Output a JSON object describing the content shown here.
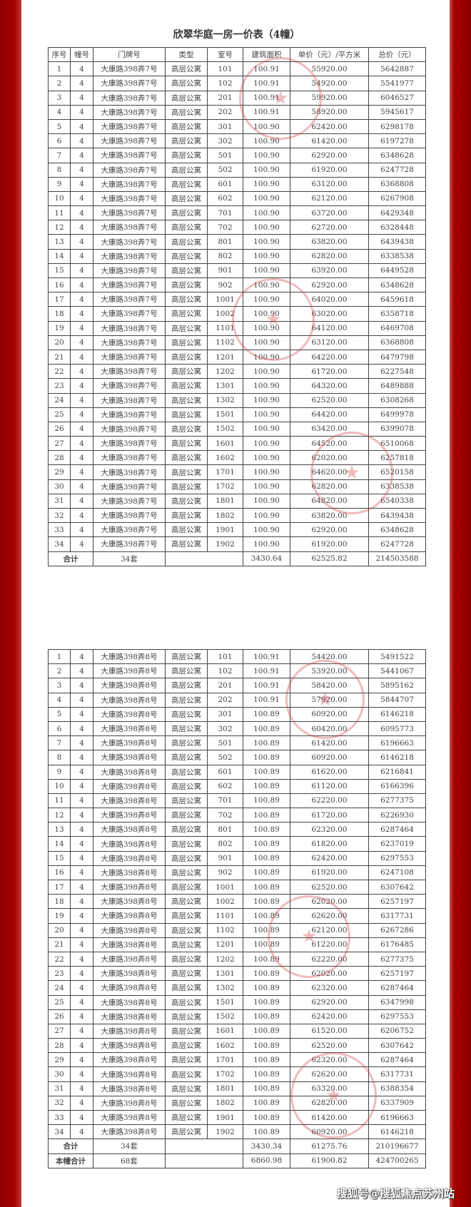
{
  "title": "欣翠华庭一房一价表（4幢）",
  "headers": [
    "序号",
    "幢号",
    "门牌号",
    "类型",
    "室号",
    "建筑面积",
    "单价（元）/平方米",
    "总价（元）"
  ],
  "table1": {
    "address": "大康路398弄7号",
    "rows": [
      [
        "1",
        "4",
        "大康路398弄7号",
        "高层公寓",
        "101",
        "100.91",
        "55920.00",
        "5642887"
      ],
      [
        "2",
        "4",
        "大康路398弄7号",
        "高层公寓",
        "102",
        "100.91",
        "54920.00",
        "5541977"
      ],
      [
        "3",
        "4",
        "大康路398弄7号",
        "高层公寓",
        "201",
        "100.91",
        "59920.00",
        "6046527"
      ],
      [
        "4",
        "4",
        "大康路398弄7号",
        "高层公寓",
        "202",
        "100.91",
        "58920.00",
        "5945617"
      ],
      [
        "5",
        "4",
        "大康路398弄7号",
        "高层公寓",
        "301",
        "100.90",
        "62420.00",
        "6298178"
      ],
      [
        "6",
        "4",
        "大康路398弄7号",
        "高层公寓",
        "302",
        "100.90",
        "61420.00",
        "6197278"
      ],
      [
        "7",
        "4",
        "大康路398弄7号",
        "高层公寓",
        "501",
        "100.90",
        "62920.00",
        "6348628"
      ],
      [
        "8",
        "4",
        "大康路398弄7号",
        "高层公寓",
        "502",
        "100.90",
        "61920.00",
        "6247728"
      ],
      [
        "9",
        "4",
        "大康路398弄7号",
        "高层公寓",
        "601",
        "100.90",
        "63120.00",
        "6368808"
      ],
      [
        "10",
        "4",
        "大康路398弄7号",
        "高层公寓",
        "602",
        "100.90",
        "62120.00",
        "6267908"
      ],
      [
        "11",
        "4",
        "大康路398弄7号",
        "高层公寓",
        "701",
        "100.90",
        "63720.00",
        "6429348"
      ],
      [
        "12",
        "4",
        "大康路398弄7号",
        "高层公寓",
        "702",
        "100.90",
        "62720.00",
        "6328448"
      ],
      [
        "13",
        "4",
        "大康路398弄7号",
        "高层公寓",
        "801",
        "100.90",
        "63820.00",
        "6439438"
      ],
      [
        "14",
        "4",
        "大康路398弄7号",
        "高层公寓",
        "802",
        "100.90",
        "62820.00",
        "6338538"
      ],
      [
        "15",
        "4",
        "大康路398弄7号",
        "高层公寓",
        "901",
        "100.90",
        "63920.00",
        "6449528"
      ],
      [
        "16",
        "4",
        "大康路398弄7号",
        "高层公寓",
        "902",
        "100.90",
        "62920.00",
        "6348628"
      ],
      [
        "17",
        "4",
        "大康路398弄7号",
        "高层公寓",
        "1001",
        "100.90",
        "64020.00",
        "6459618"
      ],
      [
        "18",
        "4",
        "大康路398弄7号",
        "高层公寓",
        "1002",
        "100.90",
        "63020.00",
        "6358718"
      ],
      [
        "19",
        "4",
        "大康路398弄7号",
        "高层公寓",
        "1101",
        "100.90",
        "64120.00",
        "6469708"
      ],
      [
        "20",
        "4",
        "大康路398弄7号",
        "高层公寓",
        "1102",
        "100.90",
        "63120.00",
        "6368808"
      ],
      [
        "21",
        "4",
        "大康路398弄7号",
        "高层公寓",
        "1201",
        "100.90",
        "64220.00",
        "6479798"
      ],
      [
        "22",
        "4",
        "大康路398弄7号",
        "高层公寓",
        "1202",
        "100.90",
        "61720.00",
        "6227548"
      ],
      [
        "23",
        "4",
        "大康路398弄7号",
        "高层公寓",
        "1301",
        "100.90",
        "64320.00",
        "6489888"
      ],
      [
        "24",
        "4",
        "大康路398弄7号",
        "高层公寓",
        "1302",
        "100.90",
        "62520.00",
        "6308268"
      ],
      [
        "25",
        "4",
        "大康路398弄7号",
        "高层公寓",
        "1501",
        "100.90",
        "64420.00",
        "6499978"
      ],
      [
        "26",
        "4",
        "大康路398弄7号",
        "高层公寓",
        "1502",
        "100.90",
        "63420.00",
        "6399078"
      ],
      [
        "27",
        "4",
        "大康路398弄7号",
        "高层公寓",
        "1601",
        "100.90",
        "64520.00",
        "6510068"
      ],
      [
        "28",
        "4",
        "大康路398弄7号",
        "高层公寓",
        "1602",
        "100.90",
        "62020.00",
        "6257818"
      ],
      [
        "29",
        "4",
        "大康路398弄7号",
        "高层公寓",
        "1701",
        "100.90",
        "64620.00",
        "6520158"
      ],
      [
        "30",
        "4",
        "大康路398弄7号",
        "高层公寓",
        "1702",
        "100.90",
        "62820.00",
        "6338538"
      ],
      [
        "31",
        "4",
        "大康路398弄7号",
        "高层公寓",
        "1801",
        "100.90",
        "64820.00",
        "6540338"
      ],
      [
        "32",
        "4",
        "大康路398弄7号",
        "高层公寓",
        "1802",
        "100.90",
        "63820.00",
        "6439438"
      ],
      [
        "33",
        "4",
        "大康路398弄7号",
        "高层公寓",
        "1901",
        "100.90",
        "62920.00",
        "6348628"
      ],
      [
        "34",
        "4",
        "大康路398弄7号",
        "高层公寓",
        "1902",
        "100.90",
        "61920.00",
        "6247728"
      ]
    ],
    "total": {
      "label": "合计",
      "count": "34套",
      "area": "3430.64",
      "unit_price": "62525.82",
      "total_price": "214503588"
    }
  },
  "table2": {
    "rows": [
      [
        "1",
        "4",
        "大康路398弄8号",
        "高层公寓",
        "101",
        "100.91",
        "54420.00",
        "5491522"
      ],
      [
        "2",
        "4",
        "大康路398弄8号",
        "高层公寓",
        "102",
        "100.91",
        "53920.00",
        "5441067"
      ],
      [
        "3",
        "4",
        "大康路398弄8号",
        "高层公寓",
        "201",
        "100.91",
        "58420.00",
        "5895162"
      ],
      [
        "4",
        "4",
        "大康路398弄8号",
        "高层公寓",
        "202",
        "100.91",
        "57920.00",
        "5844707"
      ],
      [
        "5",
        "4",
        "大康路398弄8号",
        "高层公寓",
        "301",
        "100.89",
        "60920.00",
        "6146218"
      ],
      [
        "6",
        "4",
        "大康路398弄8号",
        "高层公寓",
        "302",
        "100.89",
        "60420.00",
        "6095773"
      ],
      [
        "7",
        "4",
        "大康路398弄8号",
        "高层公寓",
        "501",
        "100.89",
        "61420.00",
        "6196663"
      ],
      [
        "8",
        "4",
        "大康路398弄8号",
        "高层公寓",
        "502",
        "100.89",
        "60920.00",
        "6146218"
      ],
      [
        "9",
        "4",
        "大康路398弄8号",
        "高层公寓",
        "601",
        "100.89",
        "61620.00",
        "6216841"
      ],
      [
        "10",
        "4",
        "大康路398弄8号",
        "高层公寓",
        "602",
        "100.89",
        "61120.00",
        "6166396"
      ],
      [
        "11",
        "4",
        "大康路398弄8号",
        "高层公寓",
        "701",
        "100.89",
        "62220.00",
        "6277375"
      ],
      [
        "12",
        "4",
        "大康路398弄8号",
        "高层公寓",
        "702",
        "100.89",
        "61720.00",
        "6226930"
      ],
      [
        "13",
        "4",
        "大康路398弄8号",
        "高层公寓",
        "801",
        "100.89",
        "62320.00",
        "6287464"
      ],
      [
        "14",
        "4",
        "大康路398弄8号",
        "高层公寓",
        "802",
        "100.89",
        "61820.00",
        "6237019"
      ],
      [
        "15",
        "4",
        "大康路398弄8号",
        "高层公寓",
        "901",
        "100.89",
        "62420.00",
        "6297553"
      ],
      [
        "16",
        "4",
        "大康路398弄8号",
        "高层公寓",
        "902",
        "100.89",
        "61920.00",
        "6247108"
      ],
      [
        "17",
        "4",
        "大康路398弄8号",
        "高层公寓",
        "1001",
        "100.89",
        "62520.00",
        "6307642"
      ],
      [
        "18",
        "4",
        "大康路398弄8号",
        "高层公寓",
        "1002",
        "100.89",
        "62020.00",
        "6257197"
      ],
      [
        "19",
        "4",
        "大康路398弄8号",
        "高层公寓",
        "1101",
        "100.89",
        "62620.00",
        "6317731"
      ],
      [
        "20",
        "4",
        "大康路398弄8号",
        "高层公寓",
        "1102",
        "100.89",
        "62120.00",
        "6267286"
      ],
      [
        "21",
        "4",
        "大康路398弄8号",
        "高层公寓",
        "1201",
        "100.89",
        "61220.00",
        "6176485"
      ],
      [
        "22",
        "4",
        "大康路398弄8号",
        "高层公寓",
        "1202",
        "100.89",
        "62220.00",
        "6277375"
      ],
      [
        "23",
        "4",
        "大康路398弄8号",
        "高层公寓",
        "1301",
        "100.89",
        "62020.00",
        "6257197"
      ],
      [
        "24",
        "4",
        "大康路398弄8号",
        "高层公寓",
        "1302",
        "100.89",
        "62320.00",
        "6287464"
      ],
      [
        "25",
        "4",
        "大康路398弄8号",
        "高层公寓",
        "1501",
        "100.89",
        "62920.00",
        "6347998"
      ],
      [
        "26",
        "4",
        "大康路398弄8号",
        "高层公寓",
        "1502",
        "100.89",
        "62420.00",
        "6297553"
      ],
      [
        "27",
        "4",
        "大康路398弄8号",
        "高层公寓",
        "1601",
        "100.89",
        "61520.00",
        "6206752"
      ],
      [
        "28",
        "4",
        "大康路398弄8号",
        "高层公寓",
        "1602",
        "100.89",
        "62520.00",
        "6307642"
      ],
      [
        "29",
        "4",
        "大康路398弄8号",
        "高层公寓",
        "1701",
        "100.89",
        "62320.00",
        "6287464"
      ],
      [
        "30",
        "4",
        "大康路398弄8号",
        "高层公寓",
        "1702",
        "100.89",
        "62620.00",
        "6317731"
      ],
      [
        "31",
        "4",
        "大康路398弄8号",
        "高层公寓",
        "1801",
        "100.89",
        "63320.00",
        "6388354"
      ],
      [
        "32",
        "4",
        "大康路398弄8号",
        "高层公寓",
        "1802",
        "100.89",
        "62820.00",
        "6337909"
      ],
      [
        "33",
        "4",
        "大康路398弄8号",
        "高层公寓",
        "1901",
        "100.89",
        "61420.00",
        "6196663"
      ],
      [
        "34",
        "4",
        "大康路398弄8号",
        "高层公寓",
        "1902",
        "100.89",
        "60920.00",
        "6146218"
      ]
    ],
    "total": {
      "label": "合计",
      "count": "34套",
      "area": "3430.34",
      "unit_price": "61275.76",
      "total_price": "210196677"
    },
    "building_total": {
      "label": "本幢合计",
      "count": "68套",
      "area": "6860.98",
      "unit_price": "61900.82",
      "total_price": "424700265"
    }
  },
  "watermark": "搜狐号@搜狐焦点苏州站",
  "colors": {
    "frame": "#a70000",
    "stamp": "#cd3c46"
  }
}
